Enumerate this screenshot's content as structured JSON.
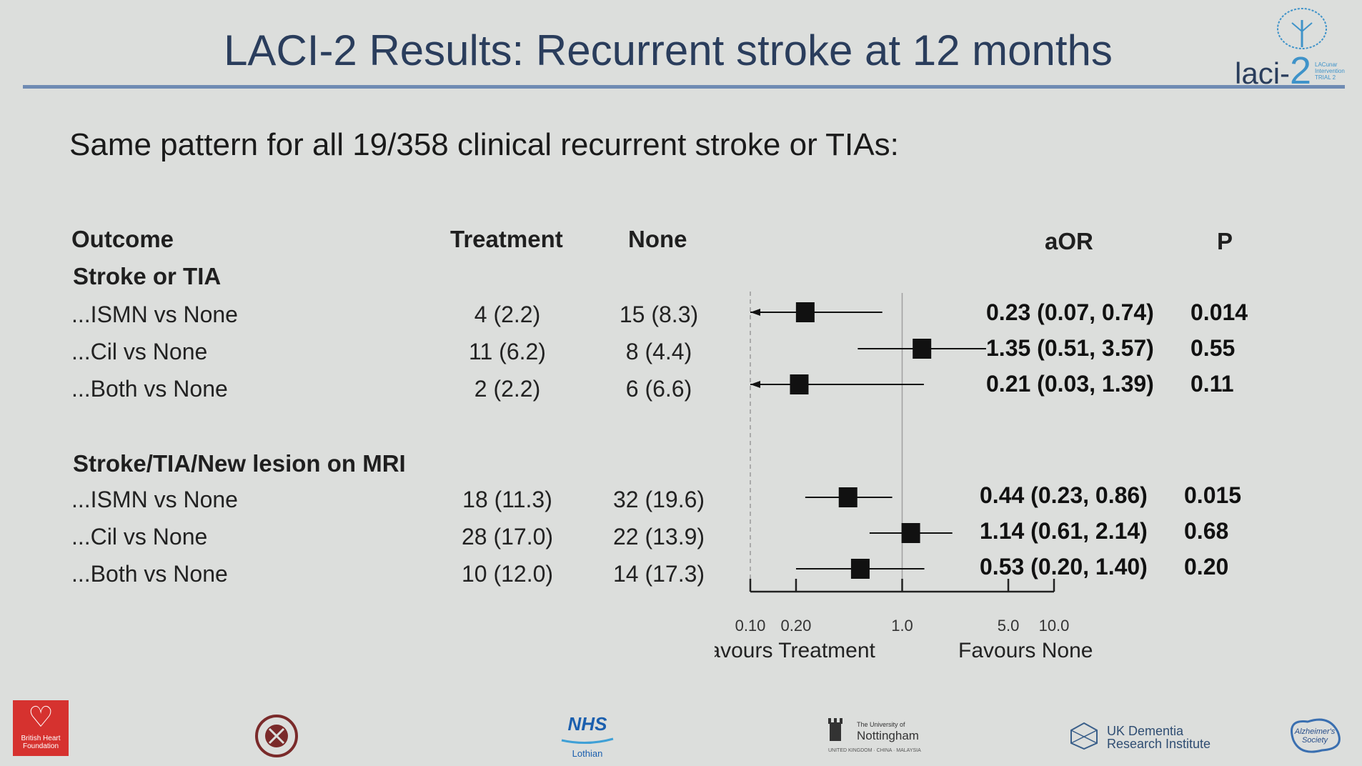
{
  "slide": {
    "title": "LACI-2 Results: Recurrent stroke at 12 months",
    "subtitle": "Same pattern for all 19/358 clinical recurrent stroke or TIAs:",
    "logo": {
      "word": "laci-",
      "digit": "2",
      "tagline_1": "LACunar",
      "tagline_2": "Intervention",
      "tagline_3": "TRIAL 2"
    }
  },
  "table": {
    "headers": {
      "outcome": "Outcome",
      "treatment": "Treatment",
      "none": "None",
      "aor": "aOR",
      "p": "P"
    },
    "sections": [
      {
        "label": "Stroke or TIA",
        "rows": [
          {
            "label": "...ISMN vs None",
            "treatment": "4 (2.2)",
            "none": "15 (8.3)",
            "aor_text": "0.23 (0.07, 0.74)",
            "p": "0.014"
          },
          {
            "label": "...Cil vs None",
            "treatment": "11 (6.2)",
            "none": "8 (4.4)",
            "aor_text": "1.35 (0.51, 3.57)",
            "p": "0.55"
          },
          {
            "label": "...Both vs None",
            "treatment": "2 (2.2)",
            "none": "6 (6.6)",
            "aor_text": "0.21 (0.03, 1.39)",
            "p": "0.11"
          }
        ]
      },
      {
        "label": "Stroke/TIA/New lesion on MRI",
        "rows": [
          {
            "label": "...ISMN vs None",
            "treatment": "18 (11.3)",
            "none": "32 (19.6)",
            "aor_text": "0.44 (0.23, 0.86)",
            "p": "0.015"
          },
          {
            "label": "...Cil vs None",
            "treatment": "28 (17.0)",
            "none": "22 (13.9)",
            "aor_text": "1.14 (0.61, 2.14)",
            "p": "0.68"
          },
          {
            "label": "...Both vs None",
            "treatment": "10 (12.0)",
            "none": "14 (17.3)",
            "aor_text": "0.53 (0.20, 1.40)",
            "p": "0.20"
          }
        ]
      }
    ]
  },
  "chart_data": {
    "type": "forest",
    "x_scale": "log",
    "xlim": [
      0.1,
      10.0
    ],
    "reference_line": 1.0,
    "ticks": [
      0.1,
      0.2,
      1.0,
      5.0,
      10.0
    ],
    "tick_labels": [
      "0.10",
      "0.20",
      "1.0",
      "5.0",
      "10.0"
    ],
    "left_label": "Favours Treatment",
    "right_label": "Favours None",
    "estimates": [
      {
        "section": "Stroke or TIA",
        "label": "...ISMN vs None",
        "aor": 0.23,
        "lo": 0.07,
        "hi": 0.74
      },
      {
        "section": "Stroke or TIA",
        "label": "...Cil vs None",
        "aor": 1.35,
        "lo": 0.51,
        "hi": 3.57
      },
      {
        "section": "Stroke or TIA",
        "label": "...Both vs None",
        "aor": 0.21,
        "lo": 0.03,
        "hi": 1.39
      },
      {
        "section": "Stroke/TIA/New lesion on MRI",
        "label": "...ISMN vs None",
        "aor": 0.44,
        "lo": 0.23,
        "hi": 0.86
      },
      {
        "section": "Stroke/TIA/New lesion on MRI",
        "label": "...Cil vs None",
        "aor": 1.14,
        "lo": 0.61,
        "hi": 2.14
      },
      {
        "section": "Stroke/TIA/New lesion on MRI",
        "label": "...Both vs None",
        "aor": 0.53,
        "lo": 0.2,
        "hi": 1.4
      }
    ]
  },
  "footer": {
    "bhf_label": "British Heart Foundation",
    "nhs_label": "NHS",
    "nhs_sub": "Lothian",
    "nottingham_small": "The University of",
    "nottingham_name": "Nottingham",
    "nottingham_campuses": "UNITED KINGDOM · CHINA · MALAYSIA",
    "ukdri_line1": "UK Dementia",
    "ukdri_line2": "Research Institute",
    "alz_label": "Alzheimer's Society"
  }
}
